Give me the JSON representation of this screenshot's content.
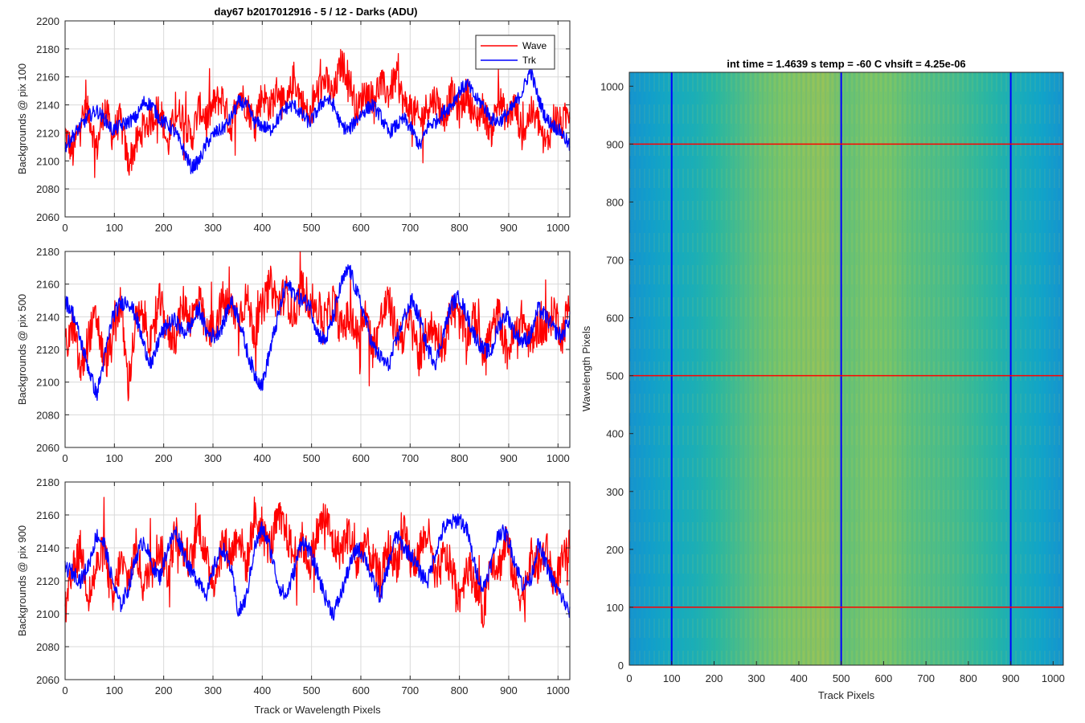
{
  "figure_title": "day67 b2017012916 - 5 / 12 - Darks (ADU)",
  "colors": {
    "wave": "#ff0000",
    "trk": "#0000ff",
    "grid": "#d9d9d9"
  },
  "chart_data": [
    {
      "type": "line",
      "title": "day67 b2017012916 - 5 / 12 - Darks (ADU)",
      "xlabel": "",
      "ylabel": "Backgrounds @ pix 100",
      "xlim": [
        0,
        1024
      ],
      "ylim": [
        2060,
        2200
      ],
      "xticks": [
        0,
        100,
        200,
        300,
        400,
        500,
        600,
        700,
        800,
        900,
        1000
      ],
      "yticks": [
        2060,
        2080,
        2100,
        2120,
        2140,
        2160,
        2180,
        2200
      ],
      "grid": true,
      "legend": {
        "position": "top-right",
        "entries": [
          "Wave",
          "Trk"
        ]
      },
      "series": [
        {
          "name": "Wave",
          "x_step": 16,
          "values": [
            2120,
            2105,
            2130,
            2135,
            2108,
            2140,
            2118,
            2130,
            2098,
            2112,
            2125,
            2130,
            2140,
            2110,
            2135,
            2132,
            2115,
            2138,
            2130,
            2142,
            2145,
            2122,
            2150,
            2140,
            2128,
            2148,
            2138,
            2152,
            2135,
            2160,
            2142,
            2130,
            2150,
            2158,
            2145,
            2170,
            2160,
            2135,
            2150,
            2145,
            2155,
            2148,
            2160,
            2140,
            2138,
            2128,
            2140,
            2145,
            2130,
            2148,
            2135,
            2150,
            2128,
            2138,
            2120,
            2145,
            2130,
            2140,
            2118,
            2135,
            2128,
            2110,
            2132,
            2125,
            2138
          ]
        },
        {
          "name": "Trk",
          "x_step": 16,
          "values": [
            2110,
            2118,
            2125,
            2132,
            2136,
            2130,
            2122,
            2125,
            2128,
            2131,
            2142,
            2140,
            2130,
            2126,
            2120,
            2108,
            2095,
            2100,
            2113,
            2120,
            2123,
            2130,
            2142,
            2140,
            2128,
            2125,
            2122,
            2130,
            2138,
            2140,
            2133,
            2127,
            2136,
            2145,
            2140,
            2125,
            2122,
            2130,
            2136,
            2140,
            2132,
            2120,
            2125,
            2130,
            2122,
            2110,
            2125,
            2128,
            2135,
            2140,
            2150,
            2155,
            2145,
            2140,
            2130,
            2128,
            2133,
            2140,
            2150,
            2165,
            2145,
            2130,
            2125,
            2120,
            2110
          ]
        }
      ]
    },
    {
      "type": "line",
      "title": "",
      "xlabel": "",
      "ylabel": "Backgrounds @ pix 500",
      "xlim": [
        0,
        1024
      ],
      "ylim": [
        2060,
        2180
      ],
      "xticks": [
        0,
        100,
        200,
        300,
        400,
        500,
        600,
        700,
        800,
        900,
        1000
      ],
      "yticks": [
        2060,
        2080,
        2100,
        2120,
        2140,
        2160,
        2180
      ],
      "grid": true,
      "series": [
        {
          "name": "Wave",
          "x_step": 16,
          "values": [
            2120,
            2135,
            2105,
            2128,
            2140,
            2110,
            2125,
            2150,
            2098,
            2138,
            2140,
            2122,
            2150,
            2130,
            2128,
            2148,
            2138,
            2150,
            2128,
            2135,
            2150,
            2145,
            2140,
            2152,
            2130,
            2145,
            2160,
            2148,
            2155,
            2140,
            2158,
            2150,
            2145,
            2138,
            2150,
            2132,
            2140,
            2128,
            2145,
            2120,
            2138,
            2150,
            2130,
            2128,
            2140,
            2110,
            2135,
            2130,
            2122,
            2145,
            2138,
            2128,
            2140,
            2120,
            2130,
            2142,
            2118,
            2128,
            2140,
            2122,
            2135,
            2130,
            2145,
            2128,
            2150
          ]
        },
        {
          "name": "Trk",
          "x_step": 16,
          "values": [
            2150,
            2142,
            2125,
            2108,
            2092,
            2115,
            2140,
            2148,
            2150,
            2140,
            2122,
            2110,
            2128,
            2135,
            2138,
            2130,
            2135,
            2145,
            2130,
            2128,
            2135,
            2150,
            2140,
            2120,
            2105,
            2098,
            2120,
            2140,
            2160,
            2155,
            2150,
            2148,
            2130,
            2125,
            2140,
            2160,
            2170,
            2155,
            2140,
            2122,
            2115,
            2110,
            2125,
            2140,
            2150,
            2138,
            2120,
            2112,
            2130,
            2148,
            2152,
            2140,
            2128,
            2120,
            2118,
            2135,
            2142,
            2130,
            2125,
            2128,
            2145,
            2140,
            2132,
            2128,
            2140
          ]
        }
      ]
    },
    {
      "type": "line",
      "title": "",
      "xlabel": "Track or Wavelength Pixels",
      "ylabel": "Backgrounds @ pix 900",
      "xlim": [
        0,
        1024
      ],
      "ylim": [
        2060,
        2180
      ],
      "xticks": [
        0,
        100,
        200,
        300,
        400,
        500,
        600,
        700,
        800,
        900,
        1000
      ],
      "yticks": [
        2060,
        2080,
        2100,
        2120,
        2140,
        2160,
        2180
      ],
      "grid": true,
      "series": [
        {
          "name": "Wave",
          "x_step": 16,
          "values": [
            2100,
            2125,
            2140,
            2110,
            2128,
            2140,
            2105,
            2132,
            2120,
            2140,
            2115,
            2135,
            2140,
            2125,
            2150,
            2138,
            2132,
            2155,
            2130,
            2120,
            2145,
            2135,
            2150,
            2128,
            2160,
            2148,
            2140,
            2158,
            2150,
            2135,
            2145,
            2130,
            2150,
            2160,
            2142,
            2138,
            2150,
            2128,
            2145,
            2132,
            2120,
            2140,
            2130,
            2148,
            2128,
            2140,
            2150,
            2118,
            2135,
            2128,
            2110,
            2130,
            2120,
            2100,
            2135,
            2128,
            2145,
            2120,
            2110,
            2135,
            2128,
            2140,
            2118,
            2130,
            2140
          ]
        },
        {
          "name": "Trk",
          "x_step": 16,
          "values": [
            2128,
            2125,
            2120,
            2130,
            2148,
            2142,
            2120,
            2105,
            2115,
            2135,
            2145,
            2130,
            2122,
            2140,
            2150,
            2138,
            2125,
            2120,
            2112,
            2130,
            2140,
            2128,
            2100,
            2110,
            2140,
            2152,
            2140,
            2118,
            2110,
            2125,
            2145,
            2138,
            2125,
            2110,
            2100,
            2112,
            2128,
            2140,
            2135,
            2120,
            2110,
            2130,
            2148,
            2140,
            2135,
            2125,
            2120,
            2138,
            2152,
            2155,
            2158,
            2150,
            2128,
            2115,
            2130,
            2150,
            2148,
            2132,
            2118,
            2120,
            2142,
            2130,
            2118,
            2110,
            2100
          ]
        }
      ]
    },
    {
      "type": "heatmap",
      "title": "int time = 1.4639 s    temp = -60 C    vhsift = 4.25e-06",
      "xlabel": "Track Pixels",
      "ylabel": "Wavelength Pixels",
      "xlim": [
        0,
        1024
      ],
      "ylim": [
        0,
        1024
      ],
      "xticks": [
        0,
        100,
        200,
        300,
        400,
        500,
        600,
        700,
        800,
        900,
        1000
      ],
      "yticks": [
        0,
        100,
        200,
        300,
        400,
        500,
        600,
        700,
        800,
        900,
        1000
      ],
      "colormap": "parula",
      "column_profile": [
        0.28,
        0.32,
        0.38,
        0.42,
        0.5,
        0.56,
        0.62,
        0.66,
        0.68,
        0.7,
        0.62,
        0.66,
        0.65,
        0.6,
        0.58,
        0.56,
        0.52,
        0.46,
        0.4,
        0.34,
        0.28
      ],
      "vertical_lines": {
        "x": [
          100,
          500,
          900
        ],
        "color": "#0000ff"
      },
      "horizontal_lines": {
        "y": [
          100,
          500,
          900
        ],
        "color": "#ff0000"
      }
    }
  ]
}
